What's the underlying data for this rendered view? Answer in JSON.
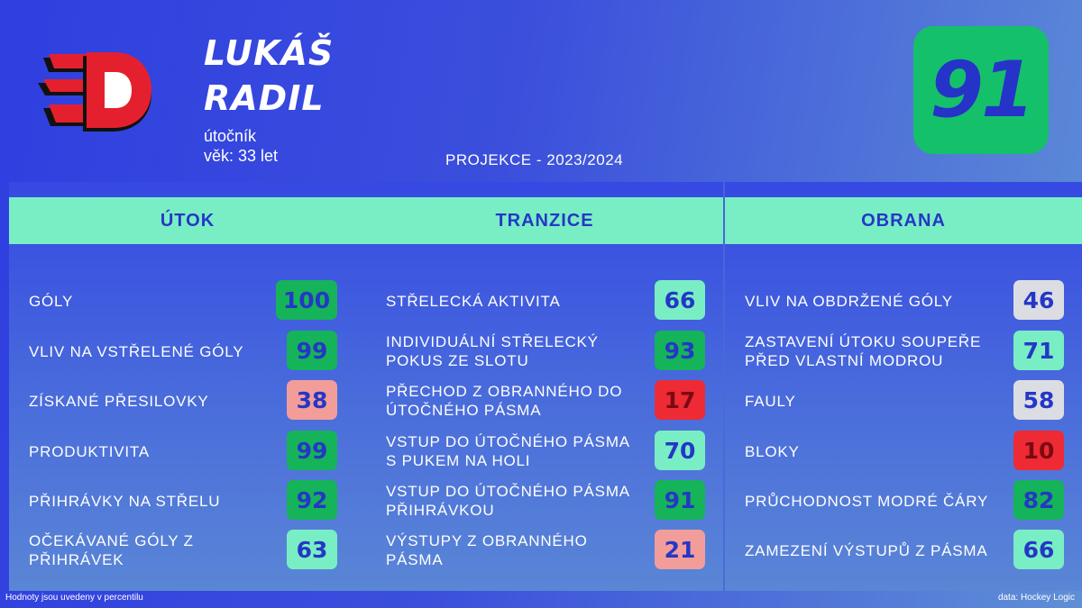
{
  "player": {
    "first_name": "LUKÁŠ",
    "last_name": "RADIL",
    "position": "útočník",
    "age": "věk: 33 let",
    "projection": "PROJEKCE - 2023/2024",
    "rating": "91"
  },
  "colors": {
    "level_dark_green": "#15b35a",
    "level_green": "#28c36e",
    "level_mint": "#79eec4",
    "level_grey": "#dcdde2",
    "level_pink": "#f29d9a",
    "level_red": "#ee2a35",
    "header_bg": "#79eec4",
    "rating_bg": "#15c06a"
  },
  "panels": [
    {
      "title": "ÚTOK",
      "metrics": [
        {
          "label": "GÓLY",
          "value": "100",
          "level": "dark_green"
        },
        {
          "label": "VLIV NA VSTŘELENÉ GÓLY",
          "value": "99",
          "level": "dark_green"
        },
        {
          "label": "ZÍSKANÉ PŘESILOVKY",
          "value": "38",
          "level": "pink"
        },
        {
          "label": "PRODUKTIVITA",
          "value": "99",
          "level": "dark_green"
        },
        {
          "label": "PŘIHRÁVKY NA STŘELU",
          "value": "92",
          "level": "dark_green"
        },
        {
          "label": "OČEKÁVANÉ GÓLY Z PŘIHRÁVEK",
          "value": "63",
          "level": "mint"
        }
      ]
    },
    {
      "title": "TRANZICE",
      "metrics": [
        {
          "label": "STŘELECKÁ AKTIVITA",
          "value": "66",
          "level": "mint"
        },
        {
          "label": "INDIVIDUÁLNÍ STŘELECKÝ POKUS ZE SLOTU",
          "value": "93",
          "level": "dark_green"
        },
        {
          "label": "PŘECHOD Z OBRANNÉHO DO ÚTOČNÉHO PÁSMA",
          "value": "17",
          "level": "red"
        },
        {
          "label": "VSTUP DO ÚTOČNÉHO PÁSMA S PUKEM NA HOLI",
          "value": "70",
          "level": "mint"
        },
        {
          "label": "VSTUP DO ÚTOČNÉHO PÁSMA PŘIHRÁVKOU",
          "value": "91",
          "level": "dark_green"
        },
        {
          "label": "VÝSTUPY Z OBRANNÉHO PÁSMA",
          "value": "21",
          "level": "pink"
        }
      ]
    },
    {
      "title": "OBRANA",
      "metrics": [
        {
          "label": "VLIV NA OBDRŽENÉ GÓLY",
          "value": "46",
          "level": "grey"
        },
        {
          "label": "ZASTAVENÍ ÚTOKU SOUPEŘE PŘED VLASTNÍ MODROU",
          "value": "71",
          "level": "mint"
        },
        {
          "label": "FAULY",
          "value": "58",
          "level": "grey"
        },
        {
          "label": "BLOKY",
          "value": "10",
          "level": "red"
        },
        {
          "label": "PRŮCHODNOST MODRÉ ČÁRY",
          "value": "82",
          "level": "dark_green"
        },
        {
          "label": "ZAMEZENÍ VÝSTUPŮ Z PÁSMA",
          "value": "66",
          "level": "mint"
        }
      ]
    }
  ],
  "footer": {
    "note": "Hodnoty jsou uvedeny v percentilu",
    "source": "data: Hockey Logic"
  }
}
